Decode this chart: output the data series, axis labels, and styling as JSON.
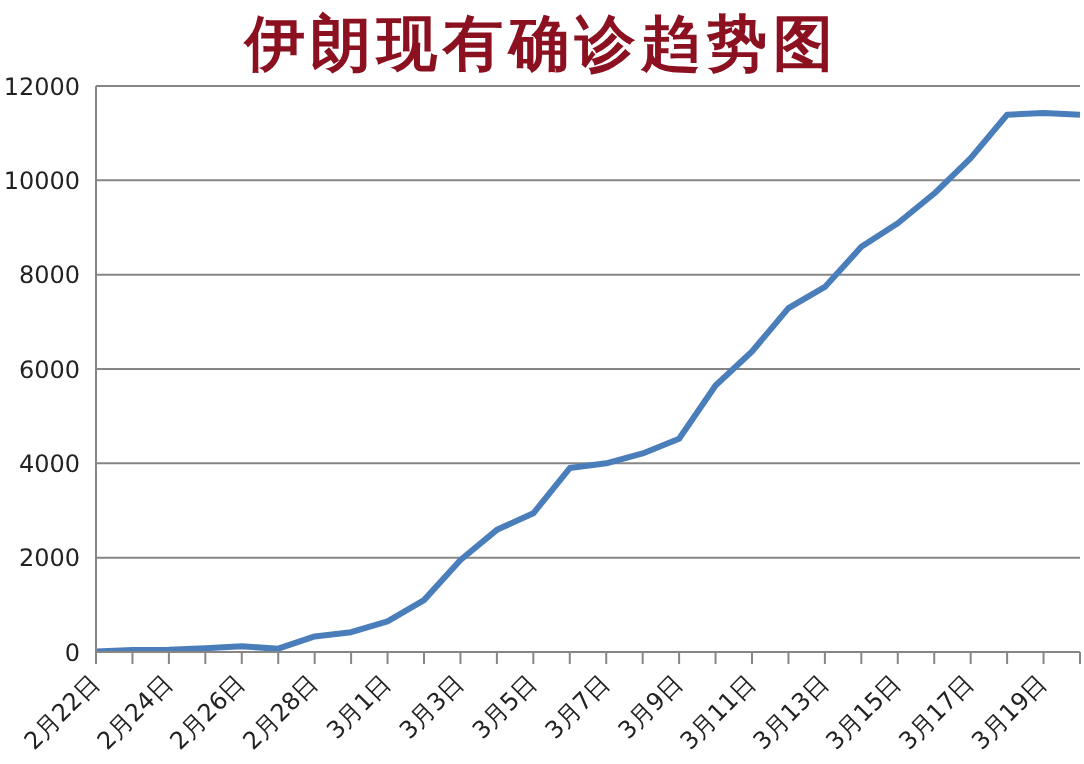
{
  "chart_data": {
    "type": "line",
    "title": "伊朗现有确诊趋势图",
    "categories": [
      "2月22日",
      null,
      "2月24日",
      null,
      "2月26日",
      null,
      "2月28日",
      null,
      "3月1日",
      null,
      "3月3日",
      null,
      "3月5日",
      null,
      "3月7日",
      null,
      "3月9日",
      null,
      "3月11日",
      null,
      "3月13日",
      null,
      "3月15日",
      null,
      "3月17日",
      null,
      "3月19日",
      null
    ],
    "series": [
      {
        "color": "#4a7ebb",
        "values": [
          10,
          40,
          50,
          80,
          120,
          70,
          330,
          420,
          650,
          1100,
          1950,
          2590,
          2940,
          3900,
          4000,
          4210,
          4520,
          5650,
          6370,
          7290,
          7740,
          8590,
          9090,
          9720,
          10470,
          11390,
          11430,
          11390
        ]
      }
    ],
    "ylim": [
      0,
      12000
    ],
    "yticks": [
      0,
      2000,
      4000,
      6000,
      8000,
      10000,
      12000
    ],
    "grid": "y",
    "legend": false,
    "marker": "none",
    "line_style": "solid"
  }
}
